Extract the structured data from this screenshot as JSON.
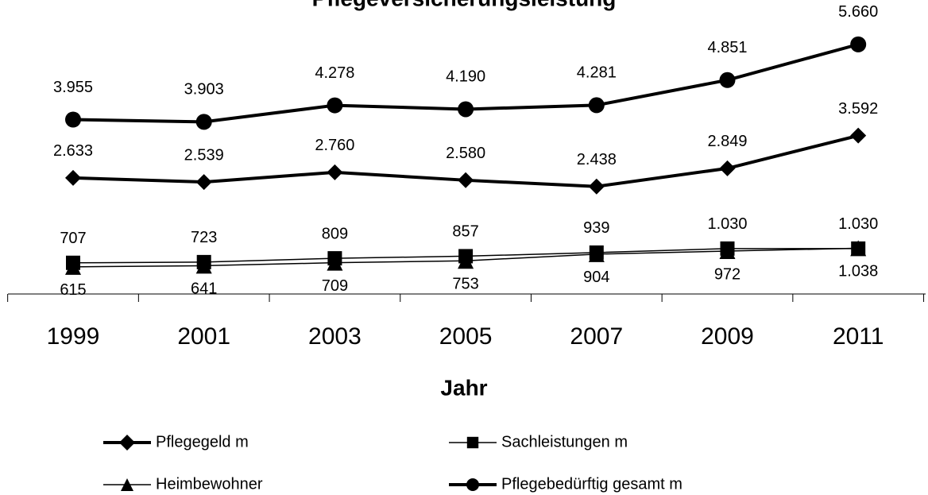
{
  "chart_data": {
    "type": "line",
    "title": "Pflegeversicherungsleistung",
    "x_label": "Jahr",
    "categories": [
      "1999",
      "2001",
      "2003",
      "2005",
      "2007",
      "2009",
      "2011"
    ],
    "series": [
      {
        "name": "Pflegegeld m",
        "color": "#000000",
        "marker": "diamond",
        "values": [
          2633,
          2539,
          2760,
          2580,
          2438,
          2849,
          3592
        ],
        "value_labels": [
          "2.633",
          "2.539",
          "2.760",
          "2.580",
          "2.438",
          "2.849",
          "3.592"
        ]
      },
      {
        "name": "Sachleistungen m",
        "color": "#000000",
        "marker": "square",
        "values": [
          707,
          723,
          809,
          857,
          939,
          1030,
          1030
        ],
        "value_labels": [
          "707",
          "723",
          "809",
          "857",
          "939",
          "1.030",
          "1.030"
        ]
      },
      {
        "name": "Heimbewohner",
        "color": "#000000",
        "marker": "triangle",
        "values": [
          615,
          641,
          709,
          753,
          904,
          972,
          1038
        ],
        "value_labels": [
          "615",
          "641",
          "709",
          "753",
          "904",
          "972",
          "1.038"
        ]
      },
      {
        "name": "Pflegebedürftig gesamt m",
        "color": "#000000",
        "marker": "circle",
        "values": [
          3955,
          3903,
          4278,
          4190,
          4281,
          4851,
          5660
        ],
        "value_labels": [
          "3.955",
          "3.903",
          "4.278",
          "4.190",
          "4.281",
          "4.851",
          "5.660"
        ]
      }
    ]
  }
}
